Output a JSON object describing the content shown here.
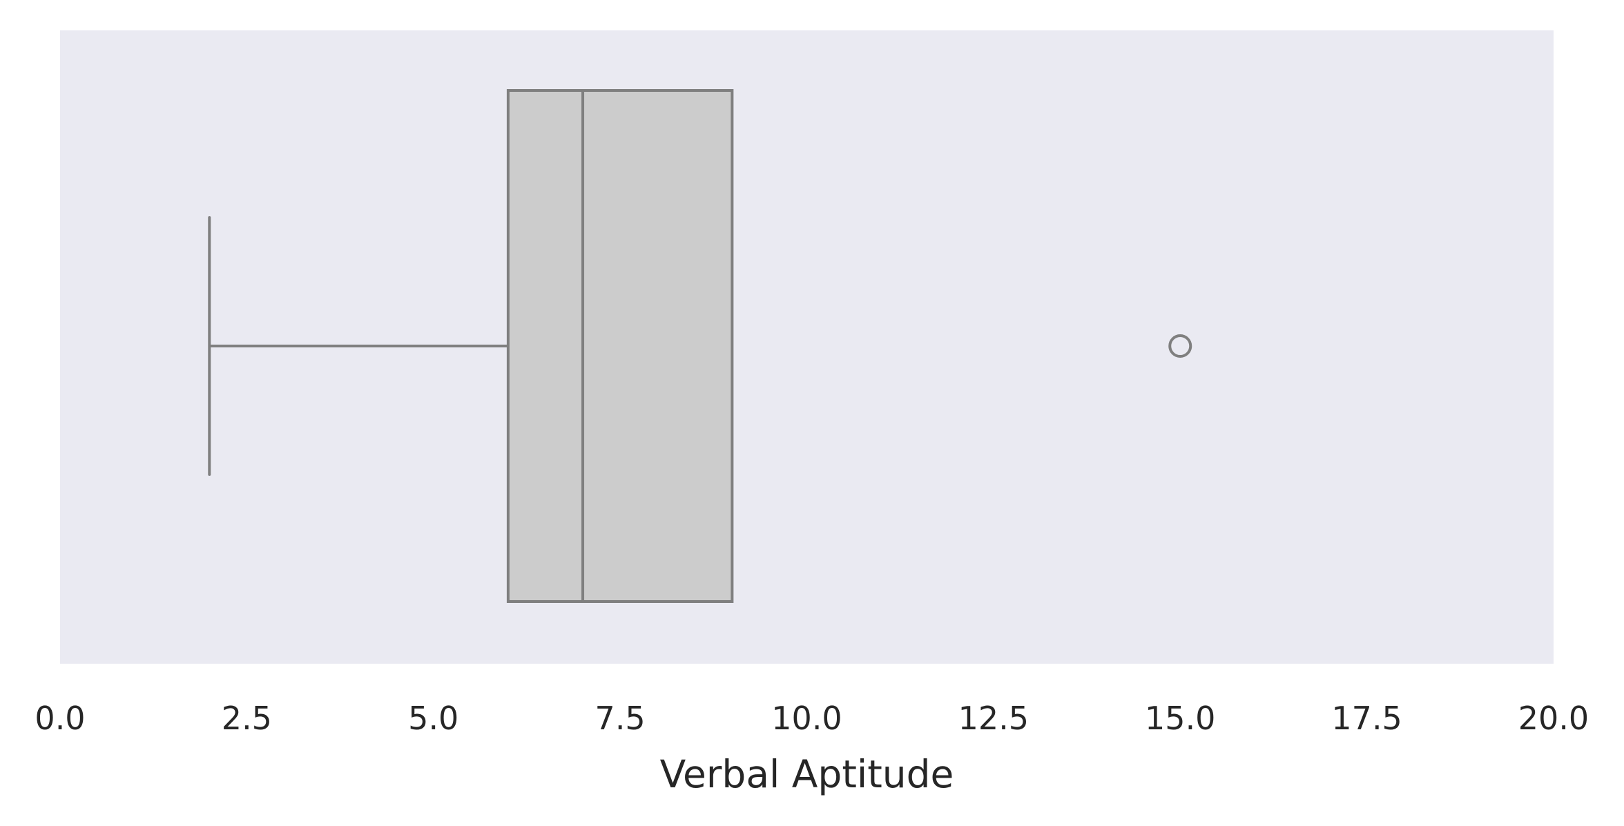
{
  "chart_data": {
    "type": "box",
    "orientation": "horizontal",
    "title": "",
    "xlabel": "Verbal Aptitude",
    "ylabel": "",
    "xlim": [
      0.0,
      20.0
    ],
    "xticks": [
      "0.0",
      "2.5",
      "5.0",
      "7.5",
      "10.0",
      "12.5",
      "15.0",
      "17.5",
      "20.0"
    ],
    "grid": false,
    "box": {
      "whisker_low": 2.0,
      "q1": 6.0,
      "median": 7.0,
      "q3": 9.0,
      "whisker_high": 9.0,
      "outliers": [
        15.0
      ]
    },
    "colors": {
      "plot_background": "#eaeaf2",
      "box_fill": "#cccccc",
      "line": "#7f7f7f",
      "text": "#262626"
    }
  }
}
